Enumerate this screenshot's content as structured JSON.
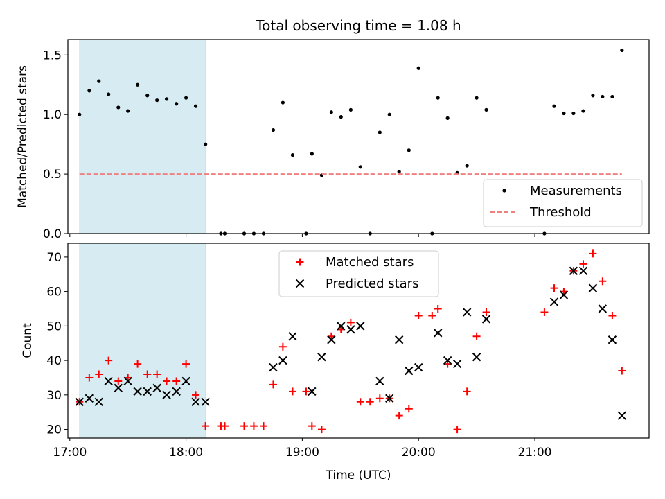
{
  "chart_data": [
    {
      "type": "scatter",
      "title": "Total observing time = 1.08 h",
      "xlabel": "",
      "ylabel": "Matched/Predicted stars",
      "xlim": [
        16.9833,
        21.9833
      ],
      "ylim": [
        0,
        1.63
      ],
      "yticks": [
        0.0,
        0.5,
        1.0,
        1.5
      ],
      "ytick_labels": [
        "0.0",
        "0.5",
        "1.0",
        "1.5"
      ],
      "xticks": [
        17,
        18,
        19,
        20,
        21
      ],
      "xtick_labels": [
        "",
        "",
        "",
        "",
        ""
      ],
      "grid": false,
      "shaded_span": {
        "x0": 17.0833,
        "x1": 18.1667,
        "color": "#add8e6"
      },
      "legend_placement": "lower-right",
      "series": [
        {
          "name": "Measurements",
          "marker": "dot",
          "color": "#000000",
          "points": [
            [
              17.083,
              1.0
            ],
            [
              17.167,
              1.2
            ],
            [
              17.25,
              1.28
            ],
            [
              17.333,
              1.17
            ],
            [
              17.417,
              1.06
            ],
            [
              17.5,
              1.03
            ],
            [
              17.583,
              1.25
            ],
            [
              17.667,
              1.16
            ],
            [
              17.75,
              1.12
            ],
            [
              17.833,
              1.13
            ],
            [
              17.917,
              1.09
            ],
            [
              18.0,
              1.14
            ],
            [
              18.083,
              1.07
            ],
            [
              18.167,
              0.75
            ],
            [
              18.3,
              0.0
            ],
            [
              18.333,
              0.0
            ],
            [
              18.5,
              0.0
            ],
            [
              18.583,
              0.0
            ],
            [
              18.667,
              0.0
            ],
            [
              18.75,
              0.87
            ],
            [
              18.833,
              1.1
            ],
            [
              18.917,
              0.66
            ],
            [
              19.033,
              0.0
            ],
            [
              19.083,
              0.67
            ],
            [
              19.167,
              0.49
            ],
            [
              19.25,
              1.02
            ],
            [
              19.333,
              0.98
            ],
            [
              19.417,
              1.04
            ],
            [
              19.5,
              0.56
            ],
            [
              19.583,
              0.0
            ],
            [
              19.667,
              0.85
            ],
            [
              19.75,
              1.0
            ],
            [
              19.833,
              0.52
            ],
            [
              19.917,
              0.7
            ],
            [
              20.0,
              1.39
            ],
            [
              20.117,
              0.0
            ],
            [
              20.167,
              1.14
            ],
            [
              20.25,
              0.97
            ],
            [
              20.333,
              0.51
            ],
            [
              20.417,
              0.57
            ],
            [
              20.5,
              1.14
            ],
            [
              20.583,
              1.04
            ],
            [
              21.083,
              0.0
            ],
            [
              21.167,
              1.07
            ],
            [
              21.25,
              1.01
            ],
            [
              21.333,
              1.01
            ],
            [
              21.417,
              1.03
            ],
            [
              21.5,
              1.16
            ],
            [
              21.583,
              1.15
            ],
            [
              21.667,
              1.15
            ],
            [
              21.75,
              1.54
            ]
          ]
        },
        {
          "name": "Threshold",
          "marker": "dashed-line",
          "color": "#f08080",
          "points": [
            [
              17.083,
              0.5
            ],
            [
              21.75,
              0.5
            ]
          ]
        }
      ]
    },
    {
      "type": "scatter",
      "title": "",
      "xlabel": "Time (UTC)",
      "ylabel": "Count",
      "xlim": [
        16.9833,
        21.9833
      ],
      "ylim": [
        17.5,
        74
      ],
      "yticks": [
        20,
        30,
        40,
        50,
        60,
        70
      ],
      "ytick_labels": [
        "20",
        "30",
        "40",
        "50",
        "60",
        "70"
      ],
      "xticks": [
        17,
        18,
        19,
        20,
        21
      ],
      "xtick_labels": [
        "17:00",
        "18:00",
        "19:00",
        "20:00",
        "21:00"
      ],
      "grid": false,
      "shaded_span": {
        "x0": 17.0833,
        "x1": 18.1667,
        "color": "#add8e6"
      },
      "legend_placement": "upper-center",
      "series": [
        {
          "name": "Matched stars",
          "marker": "plus",
          "color": "#ff0000",
          "points": [
            [
              17.083,
              28
            ],
            [
              17.167,
              35
            ],
            [
              17.25,
              36
            ],
            [
              17.333,
              40
            ],
            [
              17.417,
              34
            ],
            [
              17.5,
              35
            ],
            [
              17.583,
              39
            ],
            [
              17.667,
              36
            ],
            [
              17.75,
              36
            ],
            [
              17.833,
              34
            ],
            [
              17.917,
              34
            ],
            [
              18.0,
              39
            ],
            [
              18.083,
              30
            ],
            [
              18.167,
              21
            ],
            [
              18.3,
              21
            ],
            [
              18.333,
              21
            ],
            [
              18.5,
              21
            ],
            [
              18.583,
              21
            ],
            [
              18.667,
              21
            ],
            [
              18.75,
              33
            ],
            [
              18.833,
              44
            ],
            [
              18.917,
              31
            ],
            [
              19.033,
              31
            ],
            [
              19.083,
              21
            ],
            [
              19.167,
              20
            ],
            [
              19.25,
              47
            ],
            [
              19.333,
              49
            ],
            [
              19.417,
              51
            ],
            [
              19.5,
              28
            ],
            [
              19.583,
              28
            ],
            [
              19.667,
              29
            ],
            [
              19.75,
              29
            ],
            [
              19.833,
              24
            ],
            [
              19.917,
              26
            ],
            [
              20.0,
              53
            ],
            [
              20.117,
              53
            ],
            [
              20.167,
              55
            ],
            [
              20.25,
              39
            ],
            [
              20.333,
              20
            ],
            [
              20.417,
              31
            ],
            [
              20.5,
              47
            ],
            [
              20.583,
              54
            ],
            [
              21.083,
              54
            ],
            [
              21.167,
              61
            ],
            [
              21.25,
              60
            ],
            [
              21.333,
              66
            ],
            [
              21.417,
              68
            ],
            [
              21.5,
              71
            ],
            [
              21.583,
              63
            ],
            [
              21.667,
              53
            ],
            [
              21.75,
              37
            ]
          ]
        },
        {
          "name": "Predicted stars",
          "marker": "x",
          "color": "#000000",
          "points": [
            [
              17.083,
              28
            ],
            [
              17.167,
              29
            ],
            [
              17.25,
              28
            ],
            [
              17.333,
              34
            ],
            [
              17.417,
              32
            ],
            [
              17.5,
              34
            ],
            [
              17.583,
              31
            ],
            [
              17.667,
              31
            ],
            [
              17.75,
              32
            ],
            [
              17.833,
              30
            ],
            [
              17.917,
              31
            ],
            [
              18.0,
              34
            ],
            [
              18.083,
              28
            ],
            [
              18.167,
              28
            ],
            [
              18.75,
              38
            ],
            [
              18.833,
              40
            ],
            [
              18.917,
              47
            ],
            [
              19.083,
              31
            ],
            [
              19.167,
              41
            ],
            [
              19.25,
              46
            ],
            [
              19.333,
              50
            ],
            [
              19.417,
              49
            ],
            [
              19.5,
              50
            ],
            [
              19.667,
              34
            ],
            [
              19.75,
              29
            ],
            [
              19.833,
              46
            ],
            [
              19.917,
              37
            ],
            [
              20.0,
              38
            ],
            [
              20.167,
              48
            ],
            [
              20.25,
              40
            ],
            [
              20.333,
              39
            ],
            [
              20.417,
              54
            ],
            [
              20.5,
              41
            ],
            [
              20.583,
              52
            ],
            [
              21.167,
              57
            ],
            [
              21.25,
              59
            ],
            [
              21.333,
              66
            ],
            [
              21.417,
              66
            ],
            [
              21.5,
              61
            ],
            [
              21.583,
              55
            ],
            [
              21.667,
              46
            ],
            [
              21.75,
              24
            ]
          ]
        }
      ]
    }
  ]
}
